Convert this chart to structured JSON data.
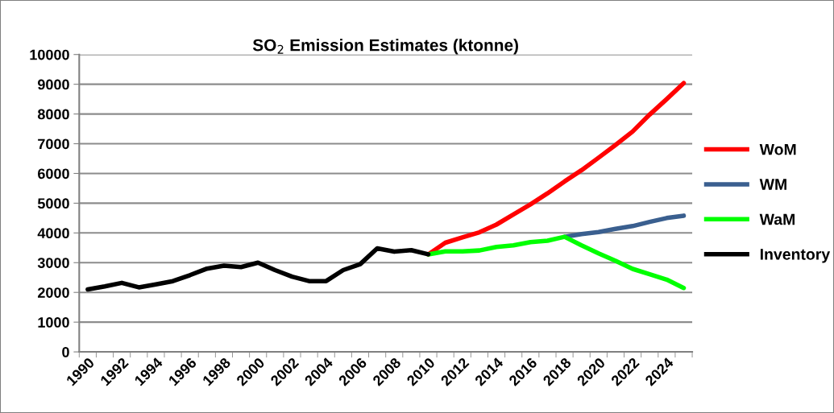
{
  "chart_data": {
    "type": "line",
    "title": "SO$_{2}$ Emission Estimates (ktonne)",
    "categories": [
      "1990",
      null,
      "1992",
      null,
      "1994",
      null,
      "1996",
      null,
      "1998",
      null,
      "2000",
      null,
      "2002",
      null,
      "2004",
      null,
      "2006",
      null,
      "2008",
      null,
      "2010",
      null,
      "2012",
      null,
      "2014",
      null,
      "2016",
      null,
      "2018",
      null,
      "2020",
      null,
      "2022",
      null,
      "2024",
      null
    ],
    "series": [
      {
        "name": "WoM",
        "color": "#ff0000",
        "values": [
          null,
          null,
          null,
          null,
          null,
          null,
          null,
          null,
          null,
          null,
          null,
          null,
          null,
          null,
          null,
          null,
          null,
          null,
          null,
          null,
          3280,
          3670,
          3850,
          4020,
          4280,
          4620,
          4960,
          5330,
          5730,
          6110,
          6530,
          6960,
          7410,
          7980,
          8500,
          9040
        ]
      },
      {
        "name": "WM",
        "color": "#3a5f8f",
        "values": [
          null,
          null,
          null,
          null,
          null,
          null,
          null,
          null,
          null,
          null,
          null,
          null,
          null,
          null,
          null,
          null,
          null,
          null,
          null,
          null,
          null,
          null,
          null,
          null,
          null,
          null,
          null,
          null,
          3870,
          3960,
          4030,
          4140,
          4230,
          4370,
          4500,
          4580
        ]
      },
      {
        "name": "WaM",
        "color": "#00ff00",
        "values": [
          null,
          null,
          null,
          null,
          null,
          null,
          null,
          null,
          null,
          null,
          null,
          null,
          null,
          null,
          null,
          null,
          null,
          null,
          null,
          null,
          3280,
          3380,
          3380,
          3410,
          3530,
          3580,
          3690,
          3740,
          3870,
          3580,
          3310,
          3060,
          2790,
          2610,
          2430,
          2150
        ]
      },
      {
        "name": "Inventory",
        "color": "#000000",
        "values": [
          2100,
          2200,
          2320,
          2170,
          2270,
          2380,
          2580,
          2800,
          2900,
          2850,
          3000,
          2750,
          2530,
          2380,
          2380,
          2750,
          2950,
          3480,
          3370,
          3420,
          3280,
          null,
          null,
          null,
          null,
          null,
          null,
          null,
          null,
          null,
          null,
          null,
          null,
          null,
          null,
          null
        ]
      }
    ],
    "ylim": [
      0,
      10000
    ],
    "yticks": [
      0,
      1000,
      2000,
      3000,
      4000,
      5000,
      6000,
      7000,
      8000,
      9000,
      10000
    ],
    "grid": "y",
    "legend": "right",
    "marker": "none",
    "line_style": "solid"
  }
}
